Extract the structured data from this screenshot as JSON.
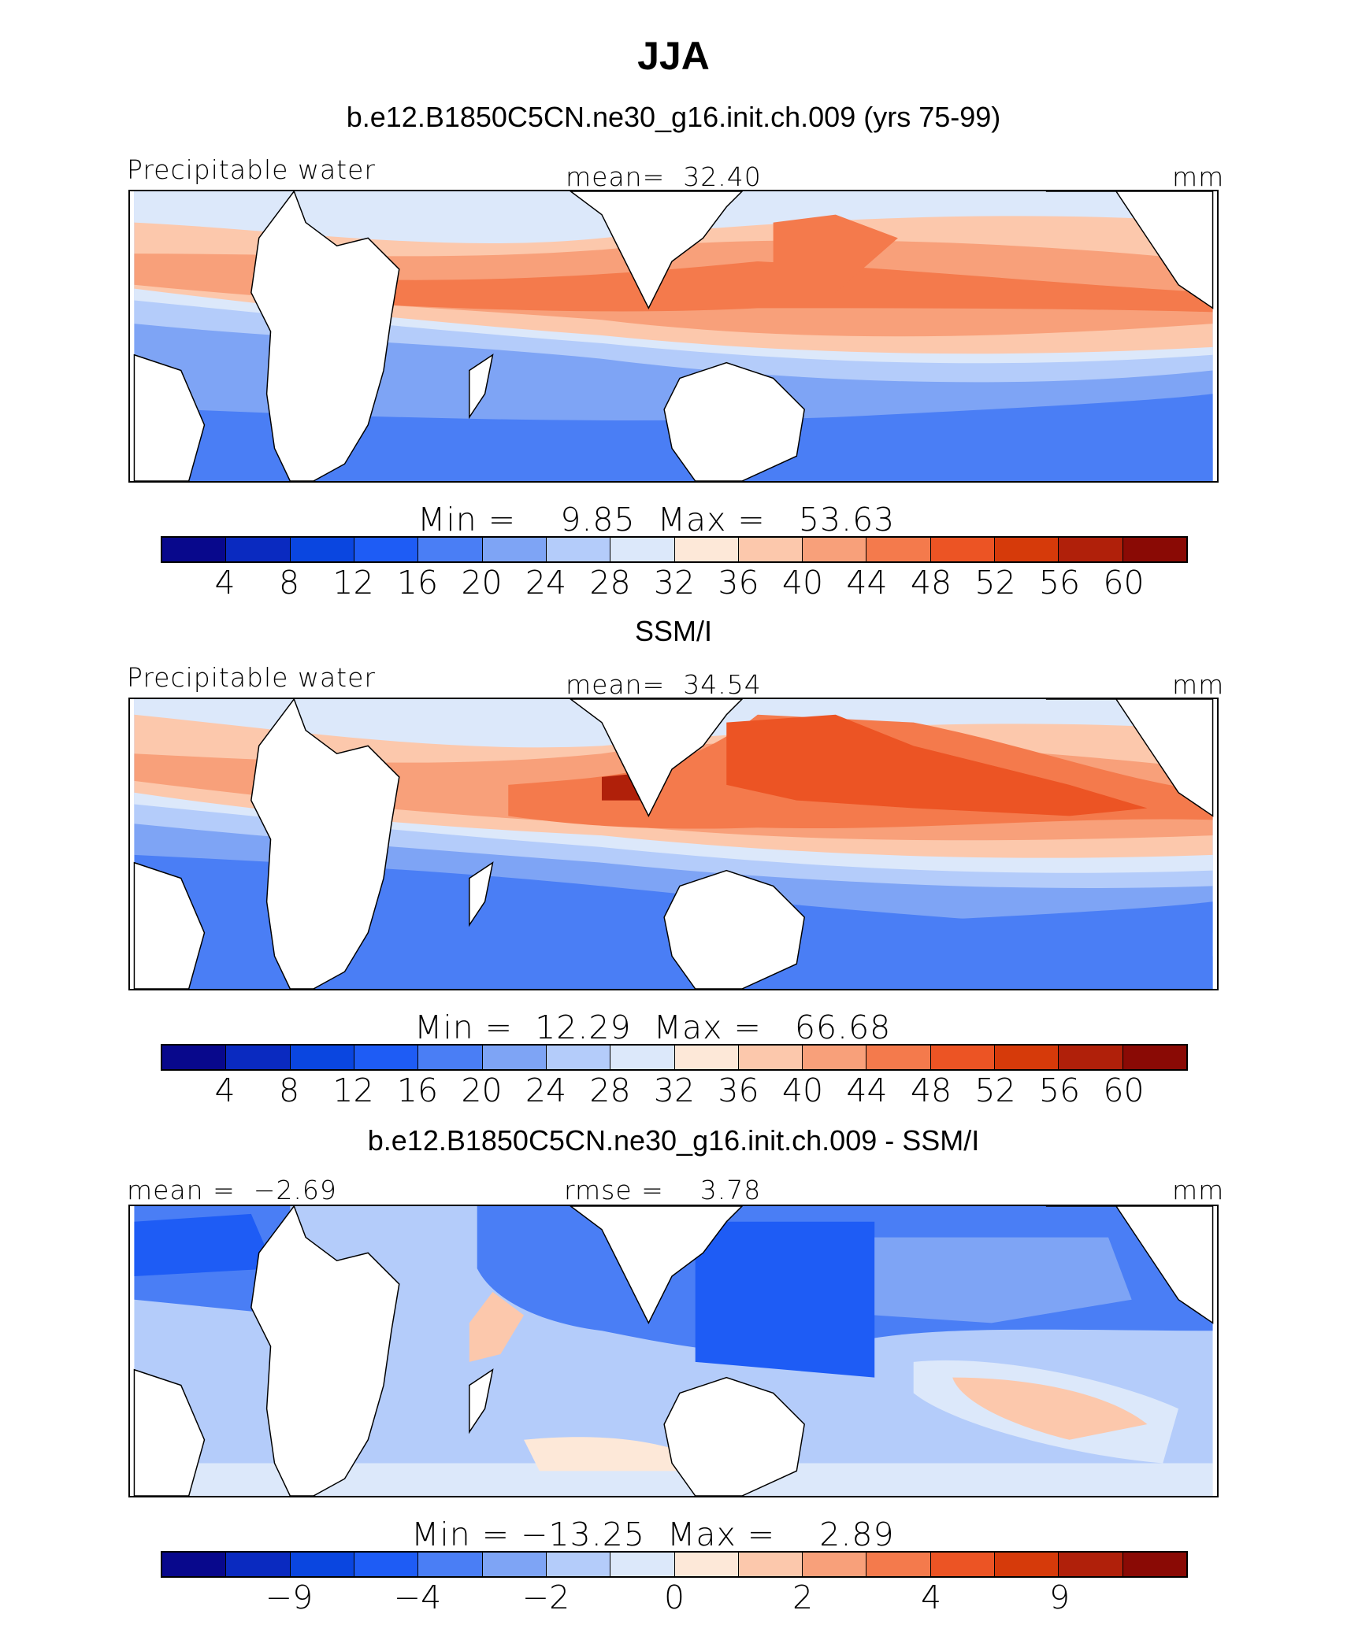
{
  "title": "JJA",
  "colors": [
    "#08088c",
    "#0a2ac0",
    "#0a46e0",
    "#1e5cf5",
    "#4a7ef5",
    "#7ea4f5",
    "#b4ccfa",
    "#dce8fa",
    "#fde8d8",
    "#fcc8ac",
    "#f8a07a",
    "#f47a4c",
    "#ec5424",
    "#d63a0a",
    "#b0200a",
    "#8a0a05"
  ],
  "land_color": "#ffffff",
  "panels": [
    {
      "subtitle": "b.e12.B1850C5CN.ne30_g16.init.ch.009 (yrs 75-99)",
      "left_label": "Precipitable water",
      "center_label": "mean=  32.40",
      "units": "mm",
      "stats": "Min =    9.85  Max =   53.63",
      "ticks": [
        "4",
        "8",
        "12",
        "16",
        "20",
        "24",
        "28",
        "32",
        "36",
        "40",
        "44",
        "48",
        "52",
        "56",
        "60"
      ]
    },
    {
      "subtitle": "SSM/I",
      "left_label": "Precipitable water",
      "center_label": "mean=  34.54",
      "units": "mm",
      "stats": "Min =  12.29  Max =   66.68",
      "ticks": [
        "4",
        "8",
        "12",
        "16",
        "20",
        "24",
        "28",
        "32",
        "36",
        "40",
        "44",
        "48",
        "52",
        "56",
        "60"
      ]
    },
    {
      "subtitle": "b.e12.B1850C5CN.ne30_g16.init.ch.009 - SSM/I",
      "left_label": "mean =  −2.69",
      "center_label": "rmse =    3.78",
      "units": "mm",
      "stats": "Min = −13.25  Max =    2.89",
      "ticks": [
        "−9",
        "−4",
        "−2",
        "0",
        "2",
        "4",
        "9"
      ]
    }
  ]
}
